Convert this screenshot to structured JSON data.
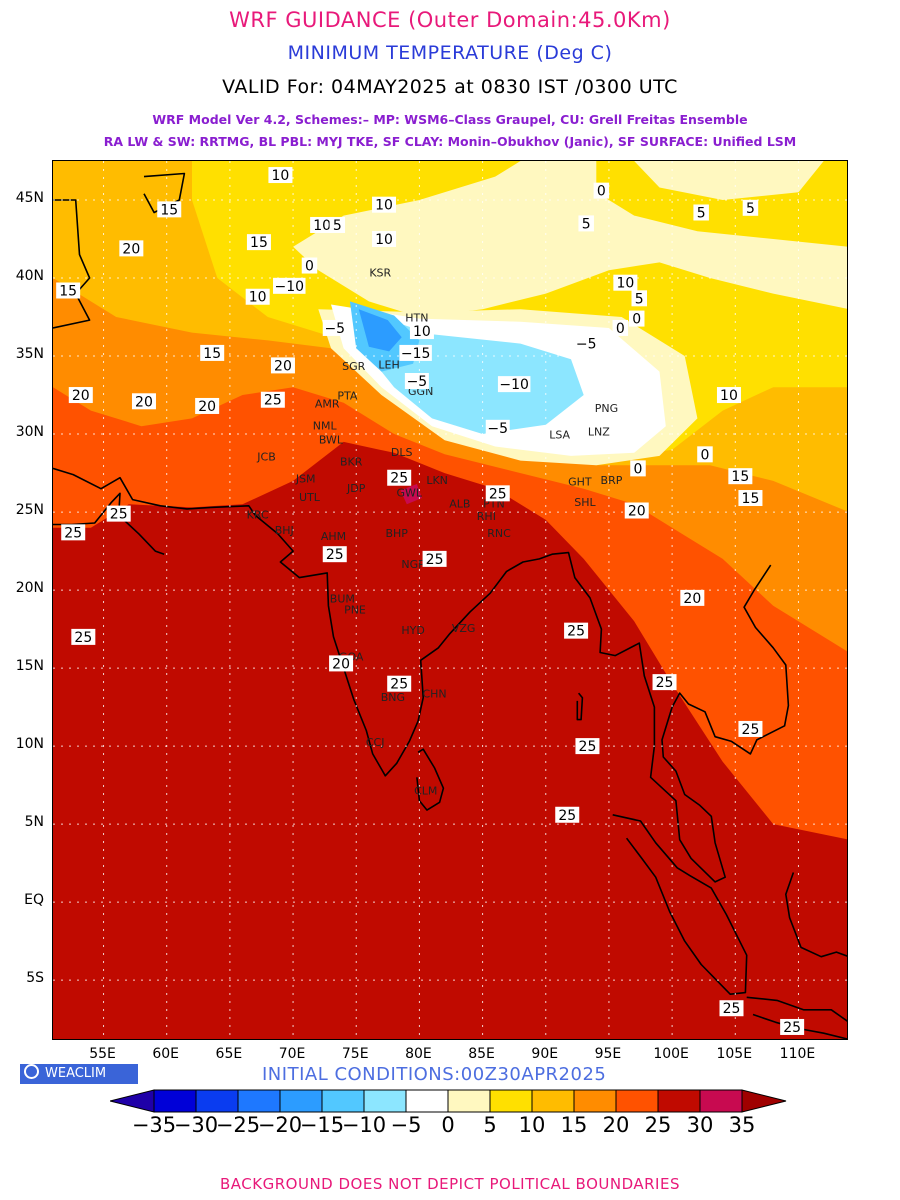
{
  "header": {
    "title": "WRF GUIDANCE (Outer Domain:45.0Km)",
    "parameter": "MINIMUM TEMPERATURE (Deg C)",
    "valid": "VALID For: 04MAY2025 at 0830 IST /0300 UTC",
    "schemes_line1": "WRF Model Ver 4.2, Schemes:– MP: WSM6–Class Graupel, CU: Grell Freitas Ensemble",
    "schemes_line2": "RA LW & SW: RRTMG, BL PBL: MYJ TKE, SF CLAY: Monin–Obukhov (Janic), SF SURFACE: Unified LSM"
  },
  "axes": {
    "lat_labels": [
      "45N",
      "40N",
      "35N",
      "30N",
      "25N",
      "20N",
      "15N",
      "10N",
      "5N",
      "EQ",
      "5S"
    ],
    "lon_labels": [
      "55E",
      "60E",
      "65E",
      "70E",
      "75E",
      "80E",
      "85E",
      "90E",
      "95E",
      "100E",
      "105E",
      "110E"
    ]
  },
  "contour_labels": [
    {
      "text": "10",
      "lon": 69,
      "lat": 46.6
    },
    {
      "text": "15",
      "lon": 60.2,
      "lat": 44.4
    },
    {
      "text": "10",
      "lon": 72.3,
      "lat": 43.4
    },
    {
      "text": "5",
      "lon": 73.5,
      "lat": 43.4
    },
    {
      "text": "10",
      "lon": 77.2,
      "lat": 44.7
    },
    {
      "text": "10",
      "lon": 77.2,
      "lat": 42.5
    },
    {
      "text": "15",
      "lon": 67.3,
      "lat": 42.3
    },
    {
      "text": "20",
      "lon": 57.2,
      "lat": 41.9
    },
    {
      "text": "0",
      "lon": 71.3,
      "lat": 40.8
    },
    {
      "text": "0",
      "lon": 94.4,
      "lat": 45.6
    },
    {
      "text": "5",
      "lon": 93.2,
      "lat": 43.5
    },
    {
      "text": "5",
      "lon": 102.3,
      "lat": 44.2
    },
    {
      "text": "5",
      "lon": 106.2,
      "lat": 44.5
    },
    {
      "text": "15",
      "lon": 52.2,
      "lat": 39.2
    },
    {
      "text": "10",
      "lon": 67.2,
      "lat": 38.8
    },
    {
      "text": "−10",
      "lon": 69.7,
      "lat": 39.5
    },
    {
      "text": "10",
      "lon": 96.3,
      "lat": 39.7
    },
    {
      "text": "5",
      "lon": 97.4,
      "lat": 38.7
    },
    {
      "text": "0",
      "lon": 95.9,
      "lat": 36.8
    },
    {
      "text": "0",
      "lon": 97.2,
      "lat": 37.4
    },
    {
      "text": "−5",
      "lon": 73.3,
      "lat": 36.8
    },
    {
      "text": "10",
      "lon": 80.2,
      "lat": 36.6
    },
    {
      "text": "−15",
      "lon": 79.7,
      "lat": 35.2
    },
    {
      "text": "−5",
      "lon": 93.2,
      "lat": 35.8
    },
    {
      "text": "15",
      "lon": 63.6,
      "lat": 35.2
    },
    {
      "text": "20",
      "lon": 69.2,
      "lat": 34.4
    },
    {
      "text": "−10",
      "lon": 87.5,
      "lat": 33.2
    },
    {
      "text": "−5",
      "lon": 79.8,
      "lat": 33.4
    },
    {
      "text": "20",
      "lon": 53.2,
      "lat": 32.5
    },
    {
      "text": "20",
      "lon": 58.2,
      "lat": 32.1
    },
    {
      "text": "20",
      "lon": 63.2,
      "lat": 31.8
    },
    {
      "text": "25",
      "lon": 68.4,
      "lat": 32.2
    },
    {
      "text": "−5",
      "lon": 86.2,
      "lat": 30.4
    },
    {
      "text": "0",
      "lon": 102.6,
      "lat": 28.7
    },
    {
      "text": "10",
      "lon": 104.5,
      "lat": 32.5
    },
    {
      "text": "0",
      "lon": 97.3,
      "lat": 27.8
    },
    {
      "text": "25",
      "lon": 78.4,
      "lat": 27.2
    },
    {
      "text": "25",
      "lon": 86.2,
      "lat": 26.2
    },
    {
      "text": "15",
      "lon": 105.4,
      "lat": 27.3
    },
    {
      "text": "15",
      "lon": 106.2,
      "lat": 25.9
    },
    {
      "text": "25",
      "lon": 56.2,
      "lat": 24.9
    },
    {
      "text": "20",
      "lon": 97.2,
      "lat": 25.1
    },
    {
      "text": "25",
      "lon": 52.6,
      "lat": 23.7
    },
    {
      "text": "25",
      "lon": 73.3,
      "lat": 22.3
    },
    {
      "text": "25",
      "lon": 81.2,
      "lat": 22.0
    },
    {
      "text": "20",
      "lon": 101.6,
      "lat": 19.5
    },
    {
      "text": "25",
      "lon": 53.4,
      "lat": 17.0
    },
    {
      "text": "25",
      "lon": 92.4,
      "lat": 17.4
    },
    {
      "text": "20",
      "lon": 73.8,
      "lat": 15.3
    },
    {
      "text": "25",
      "lon": 78.4,
      "lat": 14.0
    },
    {
      "text": "25",
      "lon": 99.4,
      "lat": 14.1
    },
    {
      "text": "25",
      "lon": 106.2,
      "lat": 11.1
    },
    {
      "text": "25",
      "lon": 93.3,
      "lat": 10.0
    },
    {
      "text": "25",
      "lon": 91.7,
      "lat": 5.6
    },
    {
      "text": "25",
      "lon": 104.7,
      "lat": -6.8
    },
    {
      "text": "25",
      "lon": 109.5,
      "lat": -8.0
    }
  ],
  "cities": [
    {
      "text": "KSR",
      "lon": 76.9,
      "lat": 40.1
    },
    {
      "text": "HTN",
      "lon": 79.8,
      "lat": 37.2
    },
    {
      "text": "LEH",
      "lon": 77.6,
      "lat": 34.2
    },
    {
      "text": "SGR",
      "lon": 74.8,
      "lat": 34.1
    },
    {
      "text": "GGN",
      "lon": 80.1,
      "lat": 32.5
    },
    {
      "text": "PNG",
      "lon": 94.8,
      "lat": 31.4
    },
    {
      "text": "LNZ",
      "lon": 94.2,
      "lat": 29.9
    },
    {
      "text": "LSA",
      "lon": 91.1,
      "lat": 29.7
    },
    {
      "text": "PTA",
      "lon": 74.3,
      "lat": 32.2
    },
    {
      "text": "AMR",
      "lon": 72.7,
      "lat": 31.7
    },
    {
      "text": "NML",
      "lon": 72.5,
      "lat": 30.3
    },
    {
      "text": "BWL",
      "lon": 73.0,
      "lat": 29.4
    },
    {
      "text": "DLS",
      "lon": 78.6,
      "lat": 28.6
    },
    {
      "text": "JCB",
      "lon": 67.9,
      "lat": 28.3
    },
    {
      "text": "BKR",
      "lon": 74.6,
      "lat": 28.0
    },
    {
      "text": "JSM",
      "lon": 71.0,
      "lat": 26.9
    },
    {
      "text": "JDP",
      "lon": 75.0,
      "lat": 26.3
    },
    {
      "text": "UTL",
      "lon": 71.3,
      "lat": 25.7
    },
    {
      "text": "GWL",
      "lon": 79.2,
      "lat": 26.0
    },
    {
      "text": "LKN",
      "lon": 81.4,
      "lat": 26.8
    },
    {
      "text": "ALB",
      "lon": 83.2,
      "lat": 25.3
    },
    {
      "text": "PTN",
      "lon": 85.9,
      "lat": 25.3
    },
    {
      "text": "GHT",
      "lon": 92.7,
      "lat": 26.7
    },
    {
      "text": "BRP",
      "lon": 95.2,
      "lat": 26.8
    },
    {
      "text": "KRC",
      "lon": 67.2,
      "lat": 24.6
    },
    {
      "text": "RHI",
      "lon": 85.3,
      "lat": 24.5
    },
    {
      "text": "SHL",
      "lon": 93.1,
      "lat": 25.4
    },
    {
      "text": "AHM",
      "lon": 73.2,
      "lat": 23.2
    },
    {
      "text": "BHP",
      "lon": 78.2,
      "lat": 23.4
    },
    {
      "text": "RNC",
      "lon": 86.3,
      "lat": 23.4
    },
    {
      "text": "BHJ",
      "lon": 69.3,
      "lat": 23.6
    },
    {
      "text": "NGP",
      "lon": 79.5,
      "lat": 21.4
    },
    {
      "text": "BUM",
      "lon": 73.9,
      "lat": 19.2
    },
    {
      "text": "PNE",
      "lon": 74.9,
      "lat": 18.5
    },
    {
      "text": "HYD",
      "lon": 79.5,
      "lat": 17.2
    },
    {
      "text": "VZG",
      "lon": 83.5,
      "lat": 17.3
    },
    {
      "text": "GOA",
      "lon": 74.6,
      "lat": 15.5
    },
    {
      "text": "BNG",
      "lon": 77.9,
      "lat": 12.9
    },
    {
      "text": "CHN",
      "lon": 81.2,
      "lat": 13.1
    },
    {
      "text": "CCJ",
      "lon": 76.5,
      "lat": 10.0
    },
    {
      "text": "CLM",
      "lon": 80.5,
      "lat": 6.9
    }
  ],
  "colorbar": {
    "labels": [
      "−35",
      "−30",
      "−25",
      "−20",
      "−15",
      "−10",
      "−5",
      "0",
      "5",
      "10",
      "15",
      "20",
      "25",
      "30",
      "35"
    ],
    "colors": [
      "#1f00a8",
      "#0000d8",
      "#0a3cf0",
      "#1e78ff",
      "#2c9cff",
      "#52c8ff",
      "#8ce6ff",
      "#ffffff",
      "#fff8c0",
      "#ffe000",
      "#ffbc00",
      "#ff8c00",
      "#ff5200",
      "#c00a00",
      "#c80a50",
      "#a00000"
    ]
  },
  "brand": "WEACLIM",
  "initial_conditions": "INITIAL CONDITIONS:00Z30APR2025",
  "footer": "BACKGROUND DOES NOT DEPICT POLITICAL BOUNDARIES"
}
